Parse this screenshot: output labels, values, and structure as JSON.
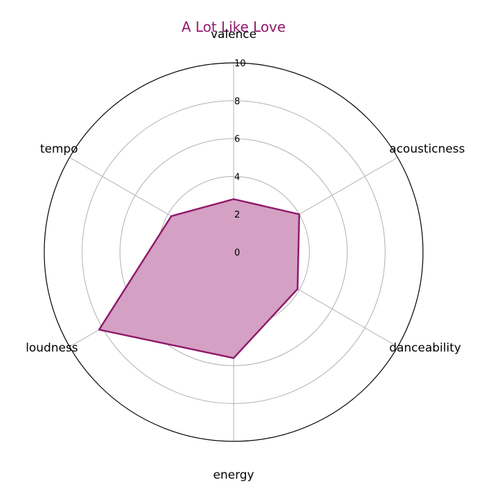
{
  "chart_data": {
    "type": "radar",
    "title": "A Lot Like Love",
    "axes": [
      "valence",
      "acousticness",
      "danceability",
      "energy",
      "loudness",
      "tempo"
    ],
    "series": [
      {
        "values": [
          2.8,
          4.0,
          3.9,
          5.6,
          8.2,
          3.8
        ]
      }
    ],
    "rlim": [
      0,
      10
    ],
    "rticks": [
      "0",
      "2",
      "4",
      "6",
      "8",
      "10"
    ],
    "grid": true,
    "colors": {
      "title": "#8f1a6b",
      "line": "#8f1a6b",
      "fill": "#d4a0c3",
      "grid": "#b0b0b0",
      "frame": "#000000"
    }
  }
}
